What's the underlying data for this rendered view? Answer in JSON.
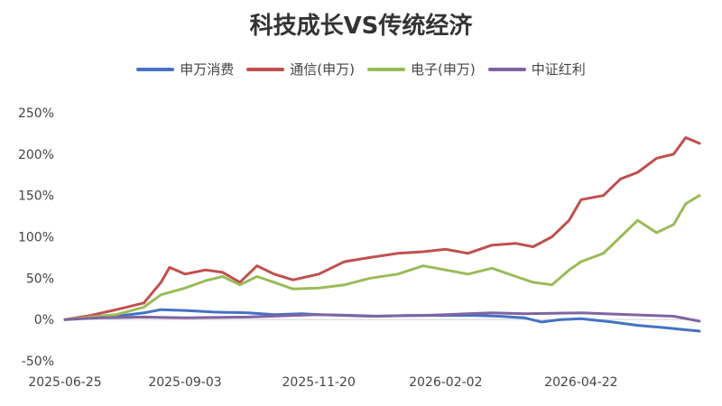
{
  "chart_data": {
    "type": "line",
    "title": "科技成长VS传统经济",
    "x_tick_labels": [
      "2025-06-25",
      "2025-09-03",
      "2025-11-20",
      "2026-02-02",
      "2026-04-22"
    ],
    "y_tick_labels": [
      "-50%",
      "0%",
      "50%",
      "100%",
      "150%",
      "200%",
      "250%"
    ],
    "ylim": [
      -50,
      250
    ],
    "y_unit": "%",
    "grid": false,
    "legend_position": "top",
    "x_range": [
      "2025-06-25",
      "2026-06-30"
    ],
    "series": [
      {
        "name": "申万消费",
        "color": "#4472C4",
        "points": [
          [
            "2025-06-25",
            0
          ],
          [
            "2025-07-10",
            2
          ],
          [
            "2025-07-25",
            4
          ],
          [
            "2025-08-10",
            8
          ],
          [
            "2025-08-20",
            12
          ],
          [
            "2025-09-03",
            11
          ],
          [
            "2025-09-20",
            9
          ],
          [
            "2025-10-10",
            8
          ],
          [
            "2025-10-25",
            6
          ],
          [
            "2025-11-10",
            7
          ],
          [
            "2025-11-20",
            6
          ],
          [
            "2025-12-10",
            5
          ],
          [
            "2025-12-25",
            4
          ],
          [
            "2026-01-10",
            5
          ],
          [
            "2026-01-25",
            5
          ],
          [
            "2026-02-02",
            5
          ],
          [
            "2026-02-20",
            5
          ],
          [
            "2026-03-05",
            4
          ],
          [
            "2026-03-20",
            2
          ],
          [
            "2026-03-30",
            -3
          ],
          [
            "2026-04-10",
            0
          ],
          [
            "2026-04-22",
            1
          ],
          [
            "2026-05-10",
            -3
          ],
          [
            "2026-05-25",
            -7
          ],
          [
            "2026-06-10",
            -10
          ],
          [
            "2026-06-30",
            -14
          ]
        ]
      },
      {
        "name": "通信(申万)",
        "color": "#C0504D",
        "points": [
          [
            "2025-06-25",
            0
          ],
          [
            "2025-07-10",
            5
          ],
          [
            "2025-07-25",
            12
          ],
          [
            "2025-08-10",
            20
          ],
          [
            "2025-08-20",
            45
          ],
          [
            "2025-08-25",
            63
          ],
          [
            "2025-09-03",
            55
          ],
          [
            "2025-09-15",
            60
          ],
          [
            "2025-09-25",
            57
          ],
          [
            "2025-10-05",
            45
          ],
          [
            "2025-10-15",
            65
          ],
          [
            "2025-10-25",
            55
          ],
          [
            "2025-11-05",
            48
          ],
          [
            "2025-11-20",
            55
          ],
          [
            "2025-12-05",
            70
          ],
          [
            "2025-12-20",
            75
          ],
          [
            "2026-01-05",
            80
          ],
          [
            "2026-01-20",
            82
          ],
          [
            "2026-02-02",
            85
          ],
          [
            "2026-02-15",
            80
          ],
          [
            "2026-03-01",
            90
          ],
          [
            "2026-03-15",
            92
          ],
          [
            "2026-03-25",
            88
          ],
          [
            "2026-04-05",
            100
          ],
          [
            "2026-04-15",
            120
          ],
          [
            "2026-04-22",
            145
          ],
          [
            "2026-05-05",
            150
          ],
          [
            "2026-05-15",
            170
          ],
          [
            "2026-05-25",
            178
          ],
          [
            "2026-06-05",
            195
          ],
          [
            "2026-06-15",
            200
          ],
          [
            "2026-06-22",
            220
          ],
          [
            "2026-06-30",
            213
          ]
        ]
      },
      {
        "name": "电子(申万)",
        "color": "#9BBB59",
        "points": [
          [
            "2025-06-25",
            0
          ],
          [
            "2025-07-10",
            3
          ],
          [
            "2025-07-25",
            6
          ],
          [
            "2025-08-10",
            15
          ],
          [
            "2025-08-20",
            30
          ],
          [
            "2025-09-03",
            38
          ],
          [
            "2025-09-15",
            47
          ],
          [
            "2025-09-25",
            52
          ],
          [
            "2025-10-05",
            42
          ],
          [
            "2025-10-15",
            52
          ],
          [
            "2025-10-25",
            45
          ],
          [
            "2025-11-05",
            37
          ],
          [
            "2025-11-20",
            38
          ],
          [
            "2025-12-05",
            42
          ],
          [
            "2025-12-20",
            50
          ],
          [
            "2026-01-05",
            55
          ],
          [
            "2026-01-20",
            65
          ],
          [
            "2026-02-02",
            60
          ],
          [
            "2026-02-15",
            55
          ],
          [
            "2026-03-01",
            62
          ],
          [
            "2026-03-15",
            52
          ],
          [
            "2026-03-25",
            45
          ],
          [
            "2026-04-05",
            42
          ],
          [
            "2026-04-15",
            60
          ],
          [
            "2026-04-22",
            70
          ],
          [
            "2026-05-05",
            80
          ],
          [
            "2026-05-15",
            100
          ],
          [
            "2026-05-25",
            120
          ],
          [
            "2026-06-05",
            105
          ],
          [
            "2026-06-15",
            115
          ],
          [
            "2026-06-22",
            140
          ],
          [
            "2026-06-30",
            150
          ]
        ]
      },
      {
        "name": "中证红利",
        "color": "#8064A2",
        "points": [
          [
            "2025-06-25",
            0
          ],
          [
            "2025-07-15",
            2
          ],
          [
            "2025-08-10",
            3
          ],
          [
            "2025-09-03",
            2
          ],
          [
            "2025-10-10",
            3
          ],
          [
            "2025-11-05",
            5
          ],
          [
            "2025-11-20",
            6
          ],
          [
            "2025-12-20",
            4
          ],
          [
            "2026-01-20",
            5
          ],
          [
            "2026-02-02",
            6
          ],
          [
            "2026-03-01",
            8
          ],
          [
            "2026-03-20",
            7
          ],
          [
            "2026-04-22",
            8
          ],
          [
            "2026-05-20",
            6
          ],
          [
            "2026-06-15",
            4
          ],
          [
            "2026-06-30",
            -2
          ]
        ]
      }
    ]
  }
}
